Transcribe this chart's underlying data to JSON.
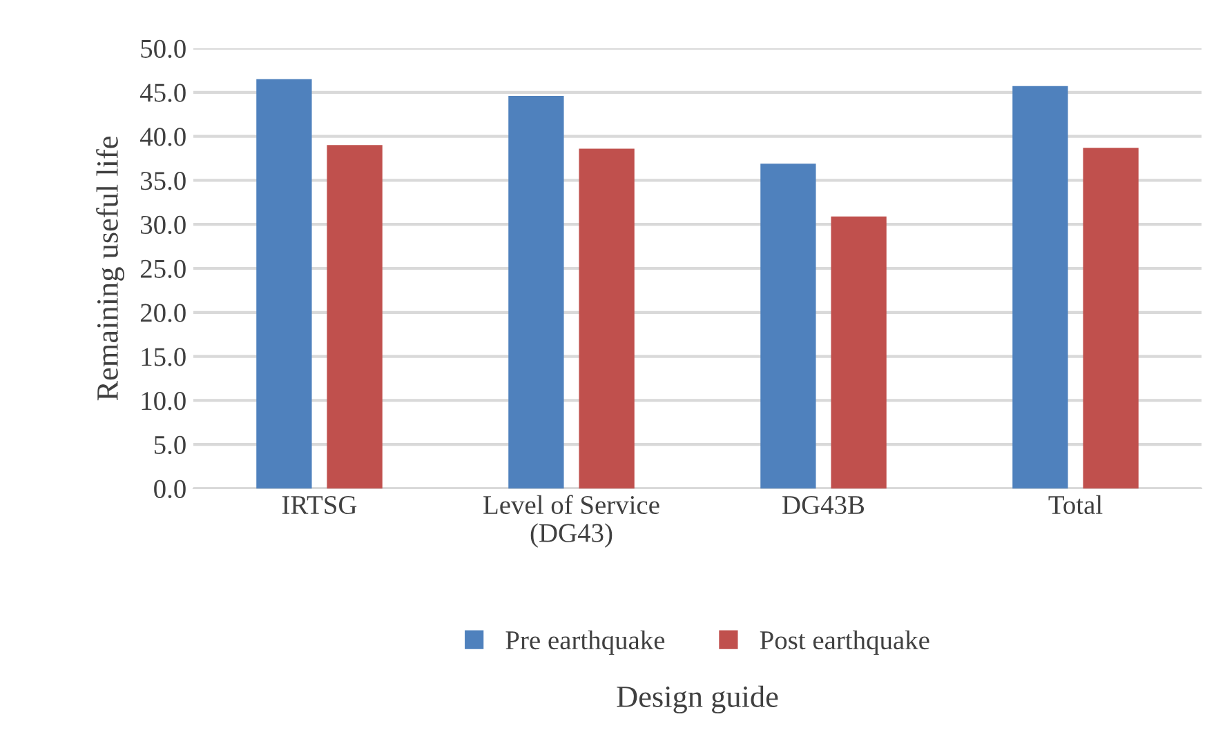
{
  "chart_data": {
    "type": "bar",
    "xlabel": "Design guide",
    "ylabel": "Remaining useful life",
    "categories": [
      "IRTSG",
      "Level of Service\n(DG43)",
      "DG43B",
      "Total"
    ],
    "series": [
      {
        "name": "Pre earthquake",
        "color": "#4f81bd",
        "values": [
          46.5,
          44.6,
          36.9,
          45.7
        ]
      },
      {
        "name": "Post earthquake",
        "color": "#c0504d",
        "values": [
          39.0,
          38.6,
          30.9,
          38.7
        ]
      }
    ],
    "ylim": [
      0,
      50
    ],
    "yticks": [
      {
        "value": 0,
        "label": "0.0"
      },
      {
        "value": 5,
        "label": "5.0"
      },
      {
        "value": 10,
        "label": "10.0"
      },
      {
        "value": 15,
        "label": "15.0"
      },
      {
        "value": 20,
        "label": "20.0"
      },
      {
        "value": 25,
        "label": "25.0"
      },
      {
        "value": 30,
        "label": "30.0"
      },
      {
        "value": 35,
        "label": "35.0"
      },
      {
        "value": 40,
        "label": "40.0"
      },
      {
        "value": 45,
        "label": "45.0"
      },
      {
        "value": 50,
        "label": "50.0"
      }
    ],
    "grid": "y",
    "legend": "bottom"
  }
}
